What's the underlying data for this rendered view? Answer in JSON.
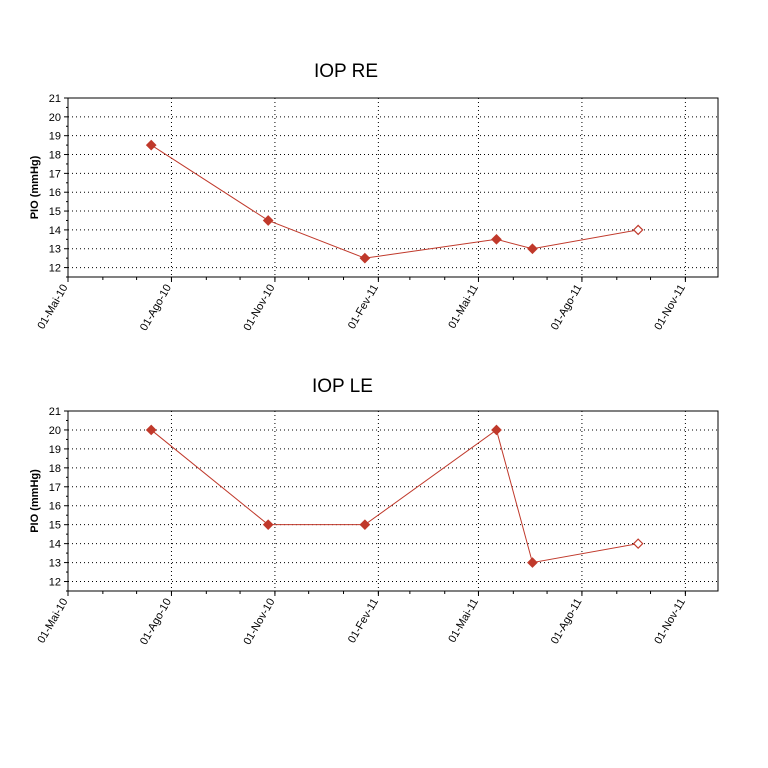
{
  "chart_data": [
    {
      "type": "line",
      "title": "IOP RE",
      "xlabel": "",
      "ylabel": "PIO (mmHg)",
      "ylim": [
        11.5,
        21
      ],
      "yticks": [
        12,
        13,
        14,
        15,
        16,
        17,
        18,
        19,
        20,
        21
      ],
      "xlim": [
        "2010-05-01",
        "2011-11-30"
      ],
      "xtick_labels": [
        "01-Mai-10",
        "01-Ago-10",
        "01-Nov-10",
        "01-Fev-11",
        "01-Mai-11",
        "01-Ago-11",
        "01-Nov-11"
      ],
      "xtick_dates": [
        "2010-05-01",
        "2010-08-01",
        "2010-11-01",
        "2011-02-01",
        "2011-05-01",
        "2011-08-01",
        "2011-11-01"
      ],
      "grid": true,
      "line_color": "#c0392b",
      "series": [
        {
          "points": [
            {
              "x": "2010-07-14",
              "y": 18.5,
              "filled": true
            },
            {
              "x": "2010-10-26",
              "y": 14.5,
              "filled": true
            },
            {
              "x": "2011-01-20",
              "y": 12.5,
              "filled": true
            },
            {
              "x": "2011-05-17",
              "y": 13.5,
              "filled": true
            },
            {
              "x": "2011-06-18",
              "y": 13.0,
              "filled": true
            },
            {
              "x": "2011-09-20",
              "y": 14.0,
              "filled": false
            }
          ]
        }
      ]
    },
    {
      "type": "line",
      "title": "IOP LE",
      "xlabel": "",
      "ylabel": "PIO (mmHg)",
      "ylim": [
        11.5,
        21
      ],
      "yticks": [
        12,
        13,
        14,
        15,
        16,
        17,
        18,
        19,
        20,
        21
      ],
      "xlim": [
        "2010-05-01",
        "2011-11-30"
      ],
      "xtick_labels": [
        "01-Mai-10",
        "01-Ago-10",
        "01-Nov-10",
        "01-Fev-11",
        "01-Mai-11",
        "01-Ago-11",
        "01-Nov-11"
      ],
      "xtick_dates": [
        "2010-05-01",
        "2010-08-01",
        "2010-11-01",
        "2011-02-01",
        "2011-05-01",
        "2011-08-01",
        "2011-11-01"
      ],
      "grid": true,
      "line_color": "#c0392b",
      "series": [
        {
          "points": [
            {
              "x": "2010-07-14",
              "y": 20.0,
              "filled": true
            },
            {
              "x": "2010-10-26",
              "y": 15.0,
              "filled": true
            },
            {
              "x": "2011-01-20",
              "y": 15.0,
              "filled": true
            },
            {
              "x": "2011-05-17",
              "y": 20.0,
              "filled": true
            },
            {
              "x": "2011-06-18",
              "y": 13.0,
              "filled": true
            },
            {
              "x": "2011-09-20",
              "y": 14.0,
              "filled": false
            }
          ]
        }
      ]
    }
  ]
}
